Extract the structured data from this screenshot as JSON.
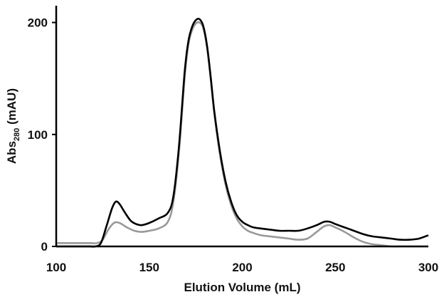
{
  "chart_data": {
    "type": "line",
    "xlabel": "Elution Volume (mL)",
    "ylabel": {
      "main": "Abs",
      "sub": "280",
      "rest": " (mAU)"
    },
    "xlim": [
      100,
      300
    ],
    "ylim": [
      0,
      215
    ],
    "xticks": [
      100,
      150,
      200,
      250,
      300
    ],
    "yticks": [
      0,
      100,
      200
    ],
    "grid": false,
    "legend": "none",
    "series": [
      {
        "color": "#999999",
        "x": [
          100,
          110,
          118,
          122,
          125,
          128,
          131,
          134,
          138,
          142,
          146,
          150,
          155,
          160,
          163,
          166,
          169,
          171,
          173,
          175,
          177,
          179,
          181,
          183,
          185,
          188,
          191,
          194,
          197,
          200,
          203,
          206,
          210,
          215,
          220,
          225,
          230,
          235,
          240,
          244,
          247,
          250,
          255,
          260,
          265,
          270,
          275,
          280,
          285,
          290,
          295,
          300
        ],
        "y": [
          3,
          3,
          3,
          3,
          6,
          15,
          21,
          21,
          17,
          14,
          13,
          14,
          16,
          22,
          40,
          85,
          150,
          180,
          193,
          199,
          200,
          195,
          178,
          150,
          118,
          82,
          55,
          37,
          25,
          18,
          14,
          12,
          10,
          9,
          8,
          7,
          6,
          7,
          13,
          18,
          19,
          17,
          13,
          8,
          4,
          2,
          1,
          0,
          0,
          0,
          0,
          0
        ]
      },
      {
        "color": "#000000",
        "x": [
          100,
          110,
          118,
          121,
          124,
          127,
          130,
          132,
          134,
          137,
          140,
          143,
          146,
          150,
          155,
          160,
          163,
          166,
          169,
          171,
          173,
          175,
          177,
          179,
          181,
          183,
          185,
          188,
          191,
          194,
          197,
          200,
          203,
          206,
          210,
          215,
          220,
          225,
          230,
          235,
          240,
          244,
          247,
          250,
          255,
          260,
          265,
          270,
          275,
          280,
          285,
          290,
          295,
          300
        ],
        "y": [
          0,
          0,
          0,
          0,
          3,
          18,
          34,
          40,
          38,
          30,
          23,
          20,
          19,
          21,
          25,
          30,
          45,
          90,
          155,
          183,
          196,
          202,
          203,
          197,
          180,
          152,
          120,
          85,
          58,
          40,
          28,
          22,
          19,
          17,
          16,
          15,
          14,
          14,
          14,
          16,
          19,
          22,
          22,
          20,
          17,
          14,
          11,
          9,
          8,
          7,
          6,
          6,
          7,
          10
        ]
      }
    ]
  }
}
